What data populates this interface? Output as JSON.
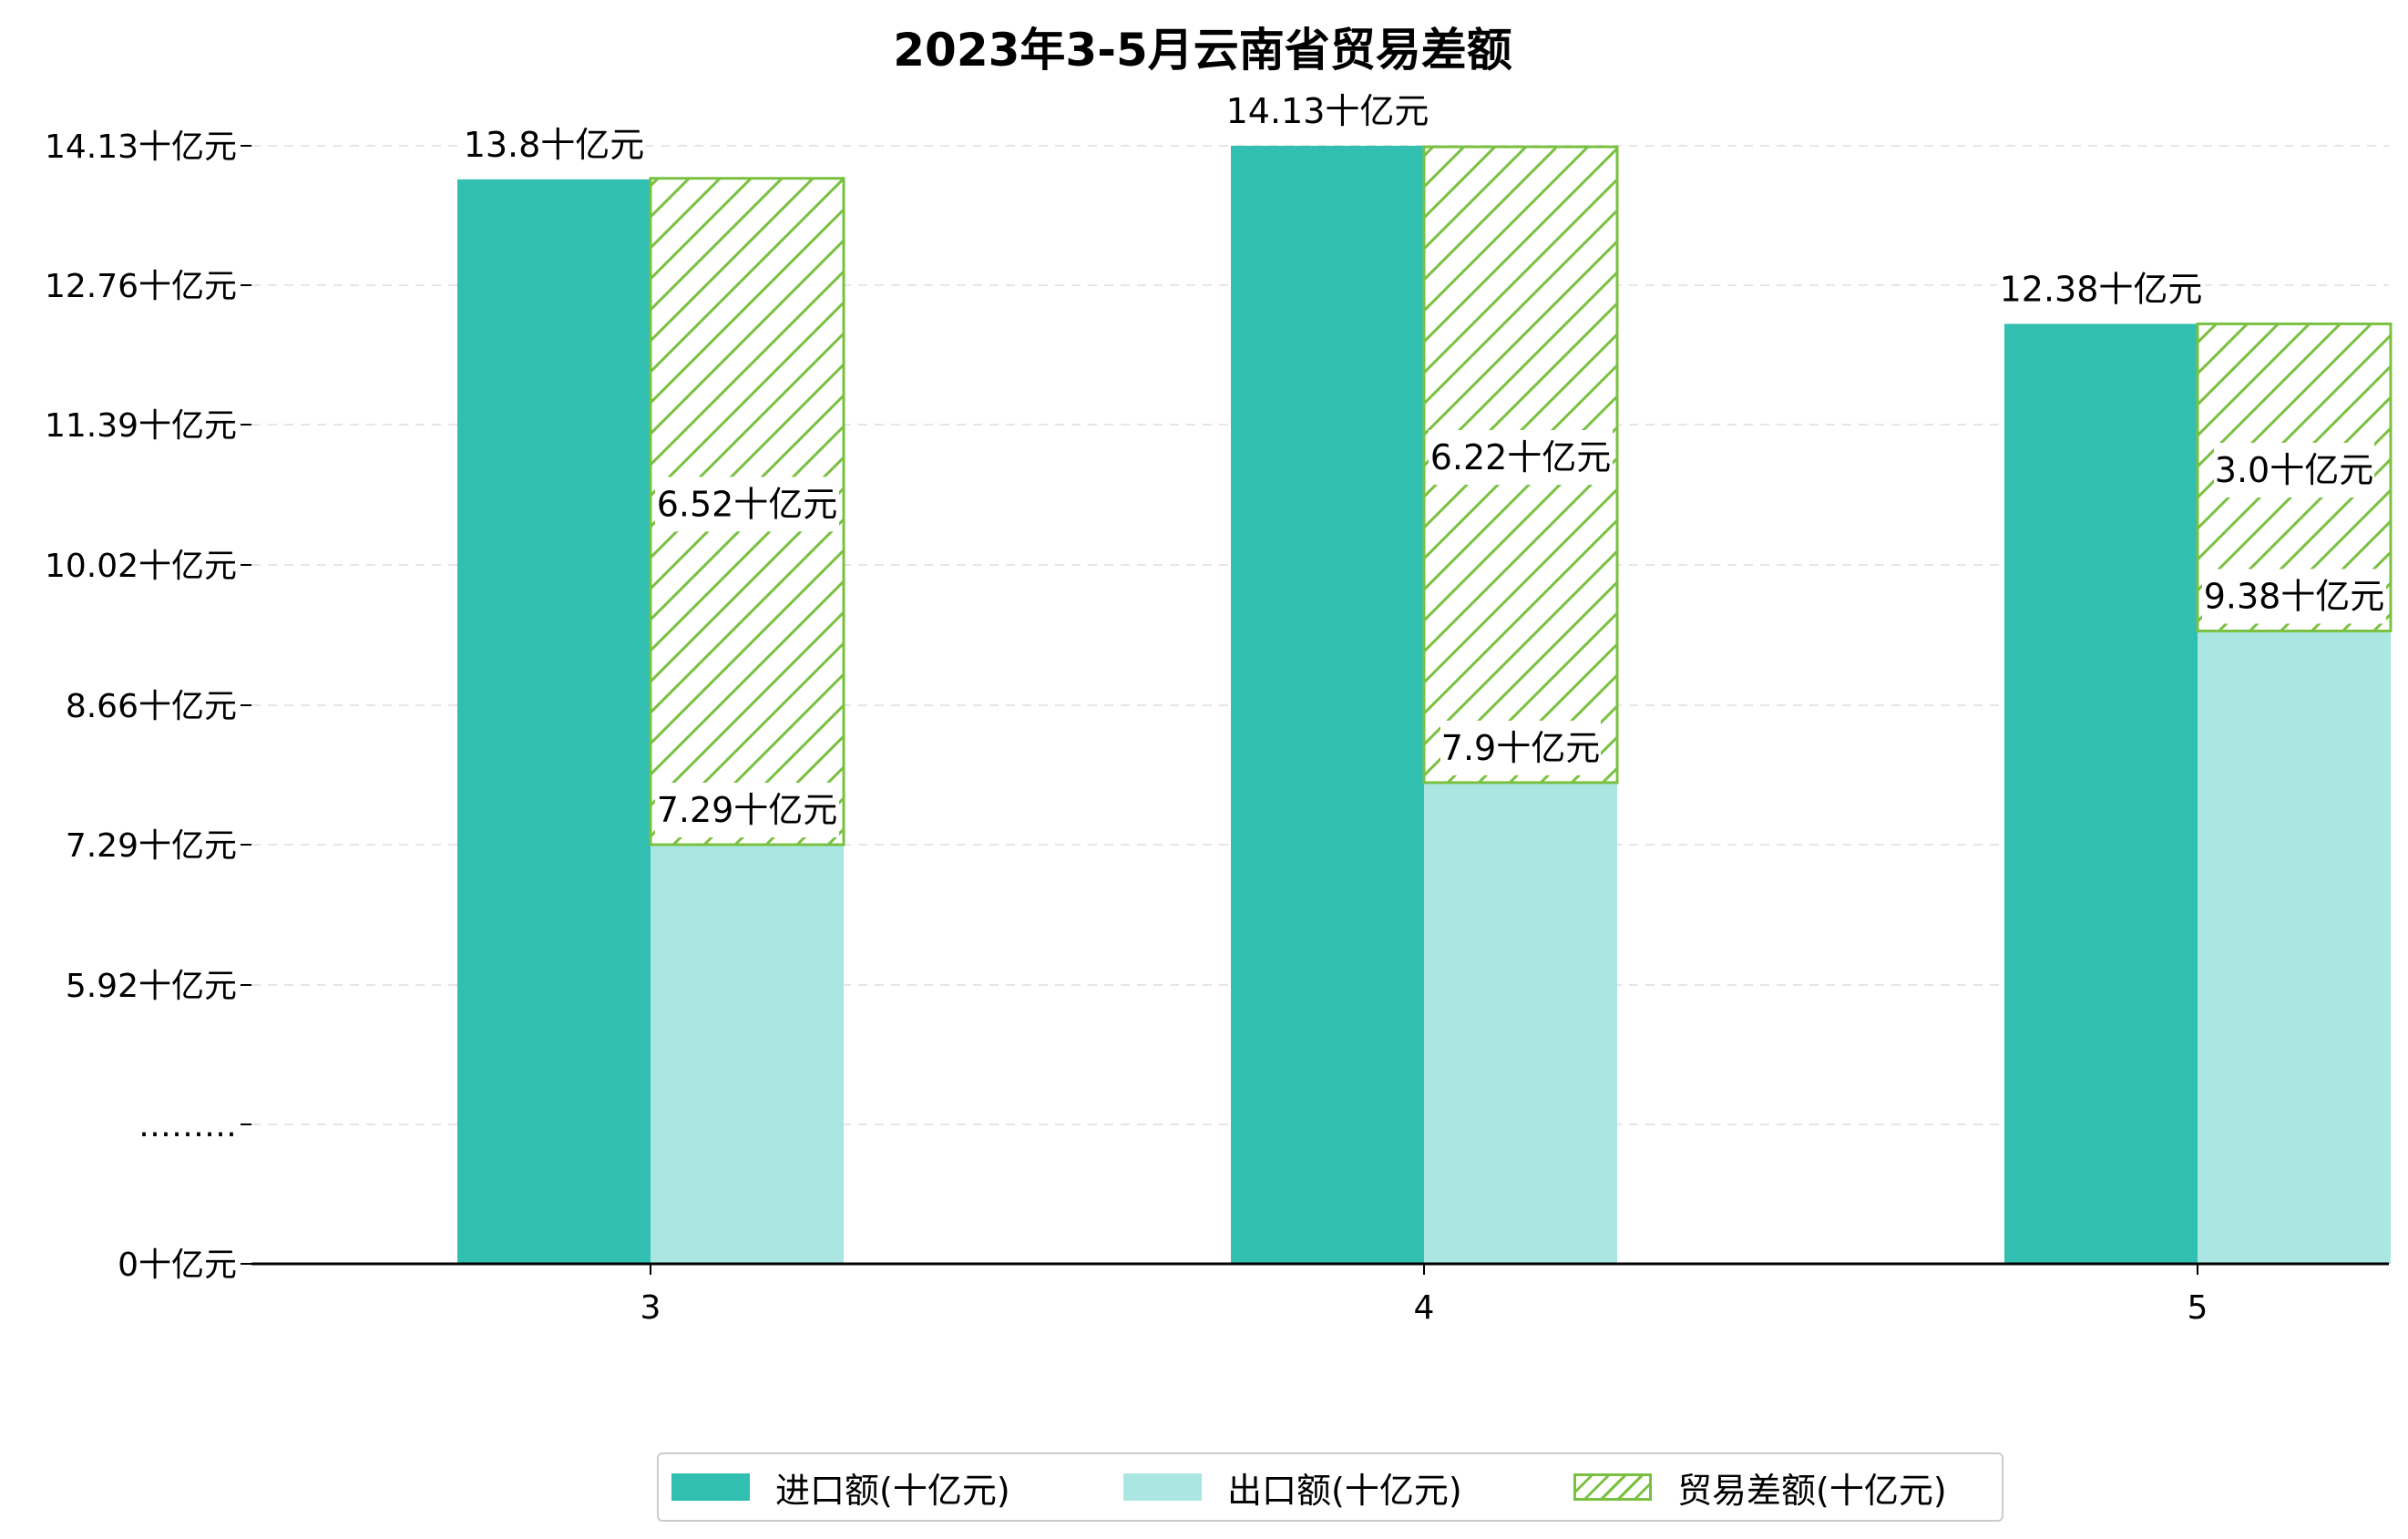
{
  "chart_data": {
    "type": "bar",
    "title": "2023年3-5月云南省贸易差额",
    "categories": [
      "3",
      "4",
      "5"
    ],
    "unit_suffix": "十亿元",
    "series": [
      {
        "name": "进口额(十亿元)",
        "key": "import",
        "values": [
          13.8,
          14.13,
          12.38
        ],
        "color": "#31bfb1"
      },
      {
        "name": "出口额(十亿元)",
        "key": "export",
        "values": [
          7.29,
          7.9,
          9.38
        ],
        "color": "#aae7e2"
      },
      {
        "name": "贸易差额(十亿元)",
        "key": "diff",
        "values": [
          6.52,
          6.22,
          3.0
        ],
        "color": "#7ac142",
        "hatch": "/"
      }
    ],
    "data_labels": {
      "import": [
        "13.8十亿元",
        "14.13十亿元",
        "12.38十亿元"
      ],
      "export": [
        "7.29十亿元",
        "7.9十亿元",
        "9.38十亿元"
      ],
      "diff": [
        "6.52十亿元",
        "6.22十亿元",
        "3.0十亿元"
      ]
    },
    "y_ticks": [
      {
        "value": 0,
        "label": "0十亿元"
      },
      {
        "value": 4.55,
        "label": "………"
      },
      {
        "value": 5.92,
        "label": "5.92十亿元"
      },
      {
        "value": 7.29,
        "label": "7.29十亿元"
      },
      {
        "value": 8.66,
        "label": "8.66十亿元"
      },
      {
        "value": 10.02,
        "label": "10.02十亿元"
      },
      {
        "value": 11.39,
        "label": "11.39十亿元"
      },
      {
        "value": 12.76,
        "label": "12.76十亿元"
      },
      {
        "value": 14.13,
        "label": "14.13十亿元"
      }
    ],
    "y_axis_break": {
      "below": 4.55,
      "above": 4.55
    },
    "ylim": [
      0,
      14.13
    ],
    "grid": true,
    "legend": "bottom-center",
    "xlabel": "",
    "ylabel": ""
  },
  "legend": {
    "import_label": "进口额(十亿元)",
    "export_label": "出口额(十亿元)",
    "diff_label": "贸易差额(十亿元)"
  },
  "colors": {
    "import": "#31bfb1",
    "export": "#aae7e2",
    "diff": "#7ac142",
    "grid": "#e6e6e6"
  }
}
